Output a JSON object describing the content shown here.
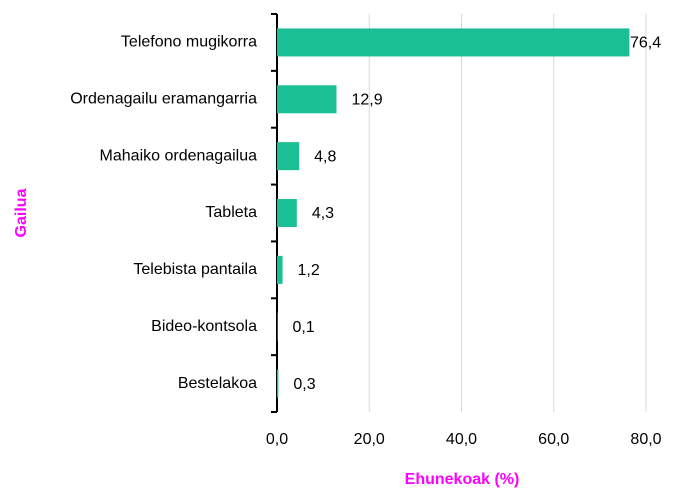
{
  "chart_data": {
    "type": "bar",
    "orientation": "horizontal",
    "categories": [
      "Telefono mugikorra",
      "Ordenagailu eramangarria",
      "Mahaiko ordenagailua",
      "Tableta",
      "Telebista pantaila",
      "Bideo-kontsola",
      "Bestelakoa"
    ],
    "values": [
      76.4,
      12.9,
      4.8,
      4.3,
      1.2,
      0.1,
      0.3
    ],
    "value_labels": [
      "76,4",
      "12,9",
      "4,8",
      "4,3",
      "1,2",
      "0,1",
      "0,3"
    ],
    "color": "#1abf94",
    "xlim": [
      0,
      80
    ],
    "xticks": [
      {
        "value": 0,
        "label": "0,0"
      },
      {
        "value": 20,
        "label": "20,0"
      },
      {
        "value": 40,
        "label": "40,0"
      },
      {
        "value": 60,
        "label": "60,0"
      },
      {
        "value": 80,
        "label": "80,0"
      }
    ],
    "xlabel": "Ehunekoak (%)",
    "ylabel": "Gailua",
    "grid": true
  }
}
